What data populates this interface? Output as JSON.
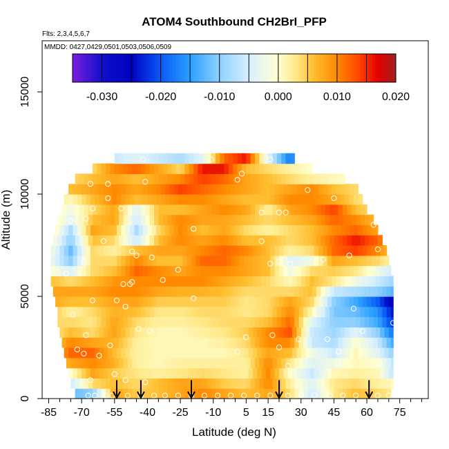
{
  "chart_data": {
    "type": "heatmap",
    "title": "ATOM4 Southbound CH2BrI_PFP",
    "subtitle_flights": "Flts: 2,3,4,5,6,7",
    "subtitle_dates": "MMDD: 0427,0429,0501,0503,0506,0509",
    "xlabel": "Latitude (deg N)",
    "ylabel": "Altitude (m)",
    "xlim": [
      -88,
      88
    ],
    "ylim": [
      0,
      17500
    ],
    "x_ticks": [
      -85,
      -70,
      -55,
      -40,
      -25,
      -10,
      5,
      15,
      30,
      45,
      60,
      75
    ],
    "x_tick_labels": [
      "-85",
      "-70",
      "-55",
      "-40",
      "-25",
      "-10",
      "5",
      "15",
      "30",
      "45",
      "60",
      "75"
    ],
    "x_minor_ticks": [
      -80,
      -75,
      -65,
      -60,
      -50,
      -45,
      -35,
      -30,
      -20,
      -15,
      -5,
      0,
      10,
      20,
      25,
      35,
      40,
      50,
      55,
      65,
      70,
      80,
      85
    ],
    "y_ticks": [
      0,
      5000,
      10000,
      15000
    ],
    "y_tick_labels": [
      "0",
      "5000",
      "10000",
      "15000"
    ],
    "colorbar": {
      "min": -0.035,
      "max": 0.02,
      "ticks": [
        -0.03,
        -0.02,
        -0.01,
        0.0,
        0.01,
        0.02
      ],
      "tick_labels": [
        "-0.030",
        "-0.020",
        "-0.010",
        "0.000",
        "0.010",
        "0.020"
      ],
      "stops": [
        {
          "v": -0.035,
          "color": "#7a1fe0"
        },
        {
          "v": -0.03,
          "color": "#1010c8"
        },
        {
          "v": -0.025,
          "color": "#0000c0"
        },
        {
          "v": -0.02,
          "color": "#0a5af5"
        },
        {
          "v": -0.015,
          "color": "#2aa0ff"
        },
        {
          "v": -0.01,
          "color": "#8fd0ff"
        },
        {
          "v": -0.005,
          "color": "#d8f0ff"
        },
        {
          "v": 0.0,
          "color": "#ffffd0"
        },
        {
          "v": 0.003,
          "color": "#ffe888"
        },
        {
          "v": 0.006,
          "color": "#ffbe30"
        },
        {
          "v": 0.01,
          "color": "#ff8a00"
        },
        {
          "v": 0.014,
          "color": "#ff4000"
        },
        {
          "v": 0.017,
          "color": "#e00000"
        },
        {
          "v": 0.02,
          "color": "#a02020"
        }
      ]
    },
    "profile_latitudes": [
      -54,
      -43,
      -20,
      20,
      61
    ],
    "field": {
      "alt_bins": [
        0,
        500,
        1000,
        1500,
        2000,
        2500,
        3000,
        3500,
        4000,
        4500,
        5000,
        5500,
        6000,
        6500,
        7000,
        7500,
        8000,
        8500,
        9000,
        9500,
        10000,
        10500,
        11000,
        11500
      ],
      "extent": [
        [
          -73,
          71
        ],
        [
          -75,
          72
        ],
        [
          -76,
          72
        ],
        [
          -77,
          72
        ],
        [
          -78,
          72
        ],
        [
          -79,
          72
        ],
        [
          -80,
          72
        ],
        [
          -81,
          72
        ],
        [
          -81,
          72
        ],
        [
          -82,
          72
        ],
        [
          -83,
          72
        ],
        [
          -84,
          72
        ],
        [
          -84,
          71
        ],
        [
          -84,
          70
        ],
        [
          -84,
          69
        ],
        [
          -83,
          67
        ],
        [
          -82,
          65
        ],
        [
          -81,
          63
        ],
        [
          -79,
          60
        ],
        [
          -78,
          58
        ],
        [
          -76,
          56
        ],
        [
          -73,
          50
        ],
        [
          -65,
          35
        ],
        [
          -55,
          27
        ]
      ],
      "lat_nodes": [
        -85,
        -75,
        -65,
        -55,
        -45,
        -35,
        -25,
        -15,
        -5,
        5,
        15,
        25,
        35,
        45,
        55,
        65,
        75
      ],
      "values": [
        [
          0.0,
          -0.012,
          -0.01,
          0.008,
          0.005,
          0.006,
          0.008,
          0.01,
          0.008,
          0.006,
          0.008,
          0.004,
          -0.006,
          0.003,
          0.006,
          0.004,
          0.002
        ],
        [
          0.0,
          -0.006,
          0.004,
          0.006,
          0.004,
          0.006,
          0.008,
          0.008,
          0.005,
          0.004,
          0.01,
          0.002,
          -0.004,
          0.003,
          0.004,
          0.002,
          0.0
        ],
        [
          0.0,
          0.0,
          0.008,
          0.005,
          0.003,
          0.002,
          0.003,
          0.004,
          0.003,
          0.002,
          0.01,
          0.0,
          -0.006,
          0.001,
          0.002,
          0.001,
          -0.01
        ],
        [
          0.003,
          0.008,
          0.01,
          0.007,
          0.002,
          0.001,
          0.002,
          0.002,
          0.002,
          0.002,
          0.01,
          0.003,
          -0.004,
          -0.002,
          0.001,
          0.0,
          -0.01
        ],
        [
          0.004,
          0.012,
          0.012,
          0.006,
          0.002,
          0.001,
          0.001,
          0.001,
          0.001,
          0.003,
          0.008,
          0.006,
          -0.002,
          -0.006,
          0.001,
          -0.004,
          -0.012
        ],
        [
          0.003,
          0.01,
          0.008,
          0.007,
          0.002,
          0.001,
          0.001,
          0.001,
          0.002,
          0.004,
          0.01,
          0.01,
          -0.006,
          -0.008,
          0.0,
          -0.006,
          -0.018
        ],
        [
          0.002,
          0.006,
          0.004,
          0.008,
          0.003,
          0.001,
          0.001,
          0.002,
          0.003,
          0.005,
          0.01,
          0.013,
          -0.006,
          -0.009,
          -0.004,
          -0.01,
          -0.022
        ],
        [
          0.004,
          0.004,
          0.003,
          0.008,
          0.004,
          0.002,
          0.002,
          0.003,
          0.004,
          0.004,
          0.006,
          0.012,
          -0.004,
          -0.01,
          -0.01,
          -0.014,
          -0.026
        ],
        [
          0.006,
          0.002,
          0.004,
          0.007,
          0.006,
          0.003,
          0.003,
          0.004,
          0.004,
          0.003,
          0.004,
          0.01,
          0.001,
          -0.011,
          -0.012,
          -0.016,
          -0.028
        ],
        [
          0.008,
          0.006,
          0.006,
          0.008,
          0.008,
          0.005,
          0.005,
          0.005,
          0.005,
          0.003,
          0.004,
          0.008,
          0.004,
          -0.01,
          -0.014,
          -0.02,
          -0.03
        ],
        [
          0.008,
          0.008,
          0.008,
          0.01,
          0.01,
          0.008,
          0.007,
          0.007,
          0.006,
          0.004,
          0.004,
          0.004,
          0.006,
          -0.006,
          -0.008,
          -0.01,
          -0.014
        ],
        [
          0.006,
          0.004,
          0.006,
          0.009,
          0.01,
          0.01,
          0.01,
          0.01,
          0.008,
          0.006,
          0.004,
          0.001,
          0.006,
          0.003,
          -0.002,
          -0.006,
          -0.01
        ],
        [
          0.0,
          -0.004,
          0.004,
          0.006,
          0.012,
          0.01,
          0.008,
          0.01,
          0.01,
          0.008,
          0.006,
          -0.002,
          0.004,
          0.005,
          0.003,
          -0.002,
          -0.008
        ],
        [
          -0.002,
          -0.01,
          0.004,
          0.004,
          0.01,
          0.006,
          0.006,
          0.012,
          0.012,
          0.008,
          0.006,
          -0.004,
          -0.002,
          0.008,
          0.006,
          0.004,
          0.0
        ],
        [
          0.0,
          -0.012,
          0.004,
          0.002,
          0.006,
          0.008,
          0.008,
          0.01,
          0.012,
          0.01,
          0.006,
          0.002,
          0.004,
          0.012,
          0.014,
          0.01,
          0.002
        ],
        [
          0.002,
          -0.01,
          0.006,
          0.004,
          -0.006,
          0.006,
          0.01,
          0.008,
          0.01,
          0.006,
          0.006,
          0.004,
          0.006,
          0.012,
          0.016,
          0.012,
          0.004
        ],
        [
          0.004,
          -0.008,
          0.008,
          0.006,
          -0.008,
          0.004,
          0.01,
          0.006,
          0.008,
          0.004,
          0.002,
          0.004,
          0.006,
          0.01,
          0.012,
          0.008,
          0.002
        ],
        [
          0.004,
          -0.004,
          0.006,
          0.008,
          -0.006,
          0.006,
          0.01,
          0.008,
          0.008,
          0.006,
          0.004,
          0.006,
          0.008,
          0.012,
          0.01,
          0.006,
          0.002
        ],
        [
          0.003,
          -0.002,
          0.004,
          0.008,
          -0.004,
          0.006,
          0.006,
          0.008,
          0.01,
          0.008,
          0.002,
          0.008,
          0.01,
          0.014,
          0.006,
          0.003,
          0.0
        ],
        [
          0.004,
          0.001,
          0.006,
          0.01,
          0.006,
          0.008,
          0.01,
          0.01,
          0.008,
          0.006,
          0.006,
          0.01,
          0.01,
          0.008,
          0.004,
          0.002,
          0.0
        ],
        [
          0.006,
          0.006,
          0.008,
          0.01,
          0.008,
          0.01,
          0.014,
          0.012,
          0.01,
          0.008,
          0.006,
          0.008,
          0.01,
          0.006,
          0.004,
          0.002,
          0.0
        ],
        [
          0.004,
          0.004,
          0.006,
          0.008,
          0.006,
          0.008,
          0.01,
          0.014,
          0.012,
          0.008,
          0.006,
          0.004,
          0.002,
          0.001,
          0.0,
          0.0,
          0.0
        ],
        [
          0.002,
          0.002,
          0.004,
          0.01,
          0.012,
          0.008,
          0.004,
          0.016,
          0.016,
          0.006,
          0.004,
          0.002,
          0.0,
          0.0,
          0.0,
          0.0,
          0.0
        ],
        [
          0.0,
          0.0,
          0.0,
          -0.006,
          -0.004,
          -0.006,
          -0.008,
          -0.004,
          0.012,
          0.016,
          -0.004,
          -0.018,
          0.0,
          0.0,
          0.0,
          0.0,
          0.0
        ]
      ]
    },
    "samples": [
      {
        "lat": -67,
        "alt": 150
      },
      {
        "lat": -64,
        "alt": 150
      },
      {
        "lat": -59,
        "alt": 150
      },
      {
        "lat": -56,
        "alt": 150
      },
      {
        "lat": -49,
        "alt": 150
      },
      {
        "lat": -43,
        "alt": 150
      },
      {
        "lat": -37,
        "alt": 150
      },
      {
        "lat": -32,
        "alt": 150
      },
      {
        "lat": -26,
        "alt": 150
      },
      {
        "lat": -20,
        "alt": 150
      },
      {
        "lat": -14,
        "alt": 150
      },
      {
        "lat": -8,
        "alt": 150
      },
      {
        "lat": -2,
        "alt": 150
      },
      {
        "lat": 4,
        "alt": 150
      },
      {
        "lat": 10,
        "alt": 150
      },
      {
        "lat": 16,
        "alt": 150
      },
      {
        "lat": 24,
        "alt": 150
      },
      {
        "lat": 30,
        "alt": 150
      },
      {
        "lat": 36,
        "alt": 150
      },
      {
        "lat": 43,
        "alt": 150
      },
      {
        "lat": 49,
        "alt": 150
      },
      {
        "lat": 55,
        "alt": 150
      },
      {
        "lat": 65,
        "alt": 150
      },
      {
        "lat": 70,
        "alt": 150
      },
      {
        "lat": -66,
        "alt": 900
      },
      {
        "lat": -55,
        "alt": 1200
      },
      {
        "lat": -50,
        "alt": 900
      },
      {
        "lat": -41,
        "alt": 800
      },
      {
        "lat": 24,
        "alt": 1600
      },
      {
        "lat": 47,
        "alt": 1700
      },
      {
        "lat": 66,
        "alt": 1700
      },
      {
        "lat": -72,
        "alt": 2400
      },
      {
        "lat": -69,
        "alt": 2200
      },
      {
        "lat": -62,
        "alt": 2100
      },
      {
        "lat": -57,
        "alt": 2600
      },
      {
        "lat": 1,
        "alt": 2300
      },
      {
        "lat": 20,
        "alt": 2500
      },
      {
        "lat": 47,
        "alt": 2300
      },
      {
        "lat": -68,
        "alt": 3100
      },
      {
        "lat": -44,
        "alt": 3400
      },
      {
        "lat": -39,
        "alt": 3300
      },
      {
        "lat": 5,
        "alt": 3000
      },
      {
        "lat": 17,
        "alt": 3100
      },
      {
        "lat": 29,
        "alt": 2900
      },
      {
        "lat": 42,
        "alt": 2900
      },
      {
        "lat": 58,
        "alt": 3300
      },
      {
        "lat": 72,
        "alt": 3700
      },
      {
        "lat": -74,
        "alt": 4100
      },
      {
        "lat": -65,
        "alt": 4800
      },
      {
        "lat": -54,
        "alt": 4800
      },
      {
        "lat": -50,
        "alt": 4500
      },
      {
        "lat": -48,
        "alt": 5600
      },
      {
        "lat": -19,
        "alt": 4900
      },
      {
        "lat": 54,
        "alt": 4400
      },
      {
        "lat": -51,
        "alt": 5600
      },
      {
        "lat": -47,
        "alt": 5700
      },
      {
        "lat": -77,
        "alt": 6100
      },
      {
        "lat": -33,
        "alt": 5800
      },
      {
        "lat": -26,
        "alt": 6300
      },
      {
        "lat": 16,
        "alt": 6600
      },
      {
        "lat": 40,
        "alt": 6800
      },
      {
        "lat": -69,
        "alt": 6700
      },
      {
        "lat": -60,
        "alt": 7700
      },
      {
        "lat": -47,
        "alt": 7200
      },
      {
        "lat": -45,
        "alt": 7000
      },
      {
        "lat": -38,
        "alt": 6900
      },
      {
        "lat": 12,
        "alt": 7700
      },
      {
        "lat": 20,
        "alt": 6700
      },
      {
        "lat": 25,
        "alt": 6600
      },
      {
        "lat": 52,
        "alt": 7000
      },
      {
        "lat": 65,
        "alt": 7300
      },
      {
        "lat": -75,
        "alt": 8700
      },
      {
        "lat": -68,
        "alt": 8800
      },
      {
        "lat": -52,
        "alt": 9300
      },
      {
        "lat": -19,
        "alt": 8300
      },
      {
        "lat": 12,
        "alt": 9100
      },
      {
        "lat": 20,
        "alt": 9100
      },
      {
        "lat": 63,
        "alt": 8500
      },
      {
        "lat": -65,
        "alt": 9300
      },
      {
        "lat": -58,
        "alt": 9800
      },
      {
        "lat": 23,
        "alt": 9100
      },
      {
        "lat": -58,
        "alt": 10500
      },
      {
        "lat": -41,
        "alt": 10600
      },
      {
        "lat": 3,
        "alt": 11000
      },
      {
        "lat": 33,
        "alt": 10200
      },
      {
        "lat": 45,
        "alt": 9800
      },
      {
        "lat": -70,
        "alt": 11300
      },
      {
        "lat": -66,
        "alt": 10500
      },
      {
        "lat": -11,
        "alt": 11700
      },
      {
        "lat": 16,
        "alt": 11700
      },
      {
        "lat": 1,
        "alt": 10700
      },
      {
        "lat": -42,
        "alt": 11700
      }
    ]
  }
}
